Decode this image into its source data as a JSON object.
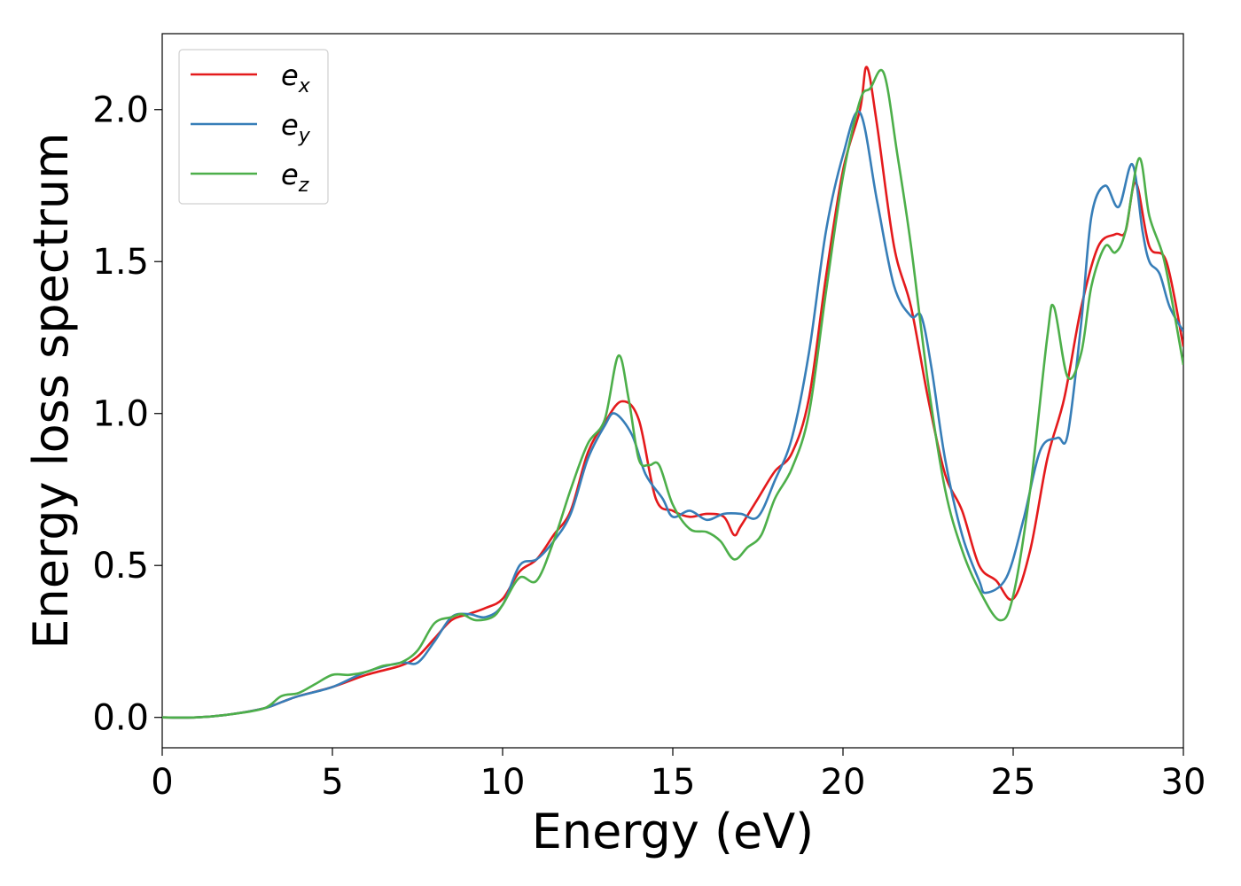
{
  "chart_data": {
    "type": "line",
    "title": "",
    "xlabel": "Energy (eV)",
    "ylabel": "Energy loss spectrum",
    "xlim": [
      0,
      30
    ],
    "ylim": [
      -0.1,
      2.25
    ],
    "xticks": [
      0,
      5,
      10,
      15,
      20,
      25,
      30
    ],
    "xtick_labels": [
      "0",
      "5",
      "10",
      "15",
      "20",
      "25",
      "30"
    ],
    "yticks": [
      0.0,
      0.5,
      1.0,
      1.5,
      2.0
    ],
    "ytick_labels": [
      "0.0",
      "0.5",
      "1.0",
      "1.5",
      "2.0"
    ],
    "grid": false,
    "legend_position": "top-left",
    "series": [
      {
        "name": "e",
        "subscript": "x",
        "color": "#e41a1c",
        "points": [
          [
            0,
            0
          ],
          [
            1,
            0
          ],
          [
            2,
            0.01
          ],
          [
            3,
            0.03
          ],
          [
            3.5,
            0.05
          ],
          [
            4,
            0.07
          ],
          [
            5,
            0.1
          ],
          [
            6,
            0.14
          ],
          [
            7,
            0.17
          ],
          [
            7.5,
            0.2
          ],
          [
            8,
            0.26
          ],
          [
            8.5,
            0.32
          ],
          [
            9,
            0.34
          ],
          [
            9.5,
            0.36
          ],
          [
            10,
            0.39
          ],
          [
            10.5,
            0.48
          ],
          [
            11,
            0.52
          ],
          [
            11.5,
            0.6
          ],
          [
            12,
            0.68
          ],
          [
            12.5,
            0.87
          ],
          [
            13,
            0.97
          ],
          [
            13.5,
            1.04
          ],
          [
            14,
            0.98
          ],
          [
            14.5,
            0.72
          ],
          [
            15,
            0.68
          ],
          [
            15.5,
            0.66
          ],
          [
            16,
            0.67
          ],
          [
            16.5,
            0.66
          ],
          [
            16.8,
            0.6
          ],
          [
            17,
            0.63
          ],
          [
            17.5,
            0.72
          ],
          [
            18,
            0.81
          ],
          [
            18.5,
            0.87
          ],
          [
            19,
            1.05
          ],
          [
            19.5,
            1.45
          ],
          [
            20,
            1.8
          ],
          [
            20.5,
            2.0
          ],
          [
            20.7,
            2.14
          ],
          [
            21,
            1.95
          ],
          [
            21.5,
            1.55
          ],
          [
            22,
            1.35
          ],
          [
            22.5,
            1.05
          ],
          [
            23,
            0.8
          ],
          [
            23.5,
            0.68
          ],
          [
            24,
            0.5
          ],
          [
            24.5,
            0.45
          ],
          [
            25,
            0.39
          ],
          [
            25.5,
            0.55
          ],
          [
            26,
            0.85
          ],
          [
            26.5,
            1.05
          ],
          [
            27,
            1.35
          ],
          [
            27.5,
            1.55
          ],
          [
            28,
            1.59
          ],
          [
            28.3,
            1.6
          ],
          [
            28.6,
            1.76
          ],
          [
            29,
            1.55
          ],
          [
            29.5,
            1.5
          ],
          [
            30,
            1.22
          ]
        ]
      },
      {
        "name": "e",
        "subscript": "y",
        "color": "#377eb8",
        "points": [
          [
            0,
            0
          ],
          [
            1,
            0
          ],
          [
            2,
            0.01
          ],
          [
            3,
            0.03
          ],
          [
            3.5,
            0.05
          ],
          [
            4,
            0.07
          ],
          [
            5,
            0.1
          ],
          [
            6,
            0.15
          ],
          [
            7,
            0.18
          ],
          [
            7.5,
            0.18
          ],
          [
            8,
            0.25
          ],
          [
            8.5,
            0.33
          ],
          [
            9,
            0.34
          ],
          [
            9.5,
            0.33
          ],
          [
            10,
            0.37
          ],
          [
            10.5,
            0.5
          ],
          [
            11,
            0.52
          ],
          [
            11.5,
            0.58
          ],
          [
            12,
            0.67
          ],
          [
            12.5,
            0.85
          ],
          [
            13,
            0.96
          ],
          [
            13.3,
            1.0
          ],
          [
            13.8,
            0.93
          ],
          [
            14.2,
            0.8
          ],
          [
            14.7,
            0.72
          ],
          [
            15,
            0.66
          ],
          [
            15.5,
            0.68
          ],
          [
            16,
            0.65
          ],
          [
            16.5,
            0.67
          ],
          [
            17,
            0.67
          ],
          [
            17.5,
            0.66
          ],
          [
            18,
            0.78
          ],
          [
            18.5,
            0.92
          ],
          [
            19,
            1.2
          ],
          [
            19.5,
            1.6
          ],
          [
            20,
            1.85
          ],
          [
            20.5,
            1.99
          ],
          [
            21,
            1.7
          ],
          [
            21.5,
            1.42
          ],
          [
            22,
            1.32
          ],
          [
            22.3,
            1.32
          ],
          [
            22.6,
            1.15
          ],
          [
            23,
            0.85
          ],
          [
            23.5,
            0.6
          ],
          [
            24,
            0.45
          ],
          [
            24.2,
            0.41
          ],
          [
            24.8,
            0.46
          ],
          [
            25.3,
            0.65
          ],
          [
            25.8,
            0.88
          ],
          [
            26.3,
            0.92
          ],
          [
            26.6,
            0.93
          ],
          [
            27,
            1.3
          ],
          [
            27.3,
            1.65
          ],
          [
            27.7,
            1.75
          ],
          [
            28.1,
            1.68
          ],
          [
            28.5,
            1.82
          ],
          [
            28.8,
            1.6
          ],
          [
            29,
            1.5
          ],
          [
            29.3,
            1.46
          ],
          [
            29.6,
            1.35
          ],
          [
            30,
            1.27
          ]
        ]
      },
      {
        "name": "e",
        "subscript": "z",
        "color": "#4daf4a",
        "points": [
          [
            0,
            0
          ],
          [
            1,
            0
          ],
          [
            2,
            0.01
          ],
          [
            3,
            0.03
          ],
          [
            3.5,
            0.07
          ],
          [
            4,
            0.08
          ],
          [
            4.5,
            0.11
          ],
          [
            5,
            0.14
          ],
          [
            5.5,
            0.14
          ],
          [
            6,
            0.15
          ],
          [
            6.5,
            0.17
          ],
          [
            7,
            0.18
          ],
          [
            7.5,
            0.22
          ],
          [
            8,
            0.31
          ],
          [
            8.5,
            0.33
          ],
          [
            8.8,
            0.34
          ],
          [
            9.2,
            0.32
          ],
          [
            9.7,
            0.33
          ],
          [
            10,
            0.37
          ],
          [
            10.5,
            0.46
          ],
          [
            11,
            0.45
          ],
          [
            11.5,
            0.58
          ],
          [
            12,
            0.75
          ],
          [
            12.5,
            0.9
          ],
          [
            13,
            0.98
          ],
          [
            13.4,
            1.19
          ],
          [
            13.7,
            1.05
          ],
          [
            14,
            0.85
          ],
          [
            14.3,
            0.83
          ],
          [
            14.6,
            0.83
          ],
          [
            15,
            0.7
          ],
          [
            15.5,
            0.62
          ],
          [
            16,
            0.61
          ],
          [
            16.4,
            0.58
          ],
          [
            16.8,
            0.52
          ],
          [
            17.2,
            0.56
          ],
          [
            17.6,
            0.6
          ],
          [
            18,
            0.72
          ],
          [
            18.5,
            0.82
          ],
          [
            19,
            1.0
          ],
          [
            19.5,
            1.4
          ],
          [
            20,
            1.78
          ],
          [
            20.5,
            2.03
          ],
          [
            20.8,
            2.07
          ],
          [
            21.2,
            2.12
          ],
          [
            21.6,
            1.85
          ],
          [
            22,
            1.55
          ],
          [
            22.5,
            1.1
          ],
          [
            23,
            0.75
          ],
          [
            23.5,
            0.55
          ],
          [
            24,
            0.42
          ],
          [
            24.6,
            0.32
          ],
          [
            25,
            0.4
          ],
          [
            25.5,
            0.75
          ],
          [
            26,
            1.25
          ],
          [
            26.2,
            1.35
          ],
          [
            26.6,
            1.12
          ],
          [
            27,
            1.2
          ],
          [
            27.3,
            1.42
          ],
          [
            27.7,
            1.55
          ],
          [
            28,
            1.53
          ],
          [
            28.3,
            1.6
          ],
          [
            28.7,
            1.84
          ],
          [
            29,
            1.65
          ],
          [
            29.4,
            1.52
          ],
          [
            29.7,
            1.35
          ],
          [
            30,
            1.16
          ]
        ]
      }
    ]
  }
}
